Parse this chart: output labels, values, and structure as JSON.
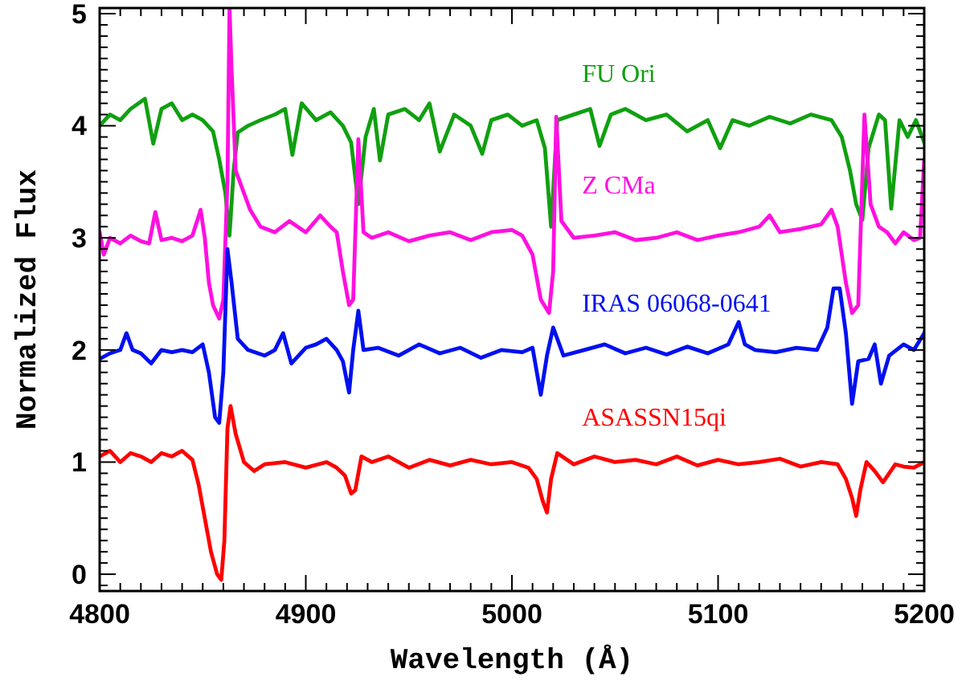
{
  "chart_data": {
    "type": "line",
    "xlabel": "Wavelength (Å)",
    "ylabel": "Normalized Flux",
    "xlim": [
      4800,
      5200
    ],
    "ylim": [
      -0.15,
      5.05
    ],
    "xticks": [
      4800,
      {
        "value": 4810,
        "label": null
      },
      {
        "value": 4820,
        "label": null
      },
      {
        "value": 4830,
        "label": null
      },
      {
        "value": 4840,
        "label": null
      },
      {
        "value": 4850,
        "label": null
      },
      {
        "value": 4860,
        "label": null
      },
      {
        "value": 4870,
        "label": null
      },
      {
        "value": 4880,
        "label": null
      },
      {
        "value": 4890,
        "label": null
      },
      4900,
      {
        "value": 4910,
        "label": null
      },
      {
        "value": 4920,
        "label": null
      },
      {
        "value": 4930,
        "label": null
      },
      {
        "value": 4940,
        "label": null
      },
      {
        "value": 4950,
        "label": null
      },
      {
        "value": 4960,
        "label": null
      },
      {
        "value": 4970,
        "label": null
      },
      {
        "value": 4980,
        "label": null
      },
      {
        "value": 4990,
        "label": null
      },
      5000,
      {
        "value": 5010,
        "label": null
      },
      {
        "value": 5020,
        "label": null
      },
      {
        "value": 5030,
        "label": null
      },
      {
        "value": 5040,
        "label": null
      },
      {
        "value": 5050,
        "label": null
      },
      {
        "value": 5060,
        "label": null
      },
      {
        "value": 5070,
        "label": null
      },
      {
        "value": 5080,
        "label": null
      },
      {
        "value": 5090,
        "label": null
      },
      5100,
      {
        "value": 5110,
        "label": null
      },
      {
        "value": 5120,
        "label": null
      },
      {
        "value": 5130,
        "label": null
      },
      {
        "value": 5140,
        "label": null
      },
      {
        "value": 5150,
        "label": null
      },
      {
        "value": 5160,
        "label": null
      },
      {
        "value": 5170,
        "label": null
      },
      {
        "value": 5180,
        "label": null
      },
      {
        "value": 5190,
        "label": null
      },
      5200
    ],
    "yticks": [
      {
        "value": -0.1,
        "label": null
      },
      0,
      {
        "value": 0.1,
        "label": null
      },
      {
        "value": 0.2,
        "label": null
      },
      {
        "value": 0.3,
        "label": null
      },
      {
        "value": 0.4,
        "label": null
      },
      {
        "value": 0.5,
        "label": null
      },
      {
        "value": 0.6,
        "label": null
      },
      {
        "value": 0.7,
        "label": null
      },
      {
        "value": 0.8,
        "label": null
      },
      {
        "value": 0.9,
        "label": null
      },
      1,
      {
        "value": 1.1,
        "label": null
      },
      {
        "value": 1.2,
        "label": null
      },
      {
        "value": 1.3,
        "label": null
      },
      {
        "value": 1.4,
        "label": null
      },
      {
        "value": 1.5,
        "label": null
      },
      {
        "value": 1.6,
        "label": null
      },
      {
        "value": 1.7,
        "label": null
      },
      {
        "value": 1.8,
        "label": null
      },
      {
        "value": 1.9,
        "label": null
      },
      2,
      {
        "value": 2.1,
        "label": null
      },
      {
        "value": 2.2,
        "label": null
      },
      {
        "value": 2.3,
        "label": null
      },
      {
        "value": 2.4,
        "label": null
      },
      {
        "value": 2.5,
        "label": null
      },
      {
        "value": 2.6,
        "label": null
      },
      {
        "value": 2.7,
        "label": null
      },
      {
        "value": 2.8,
        "label": null
      },
      {
        "value": 2.9,
        "label": null
      },
      3,
      {
        "value": 3.1,
        "label": null
      },
      {
        "value": 3.2,
        "label": null
      },
      {
        "value": 3.3,
        "label": null
      },
      {
        "value": 3.4,
        "label": null
      },
      {
        "value": 3.5,
        "label": null
      },
      {
        "value": 3.6,
        "label": null
      },
      {
        "value": 3.7,
        "label": null
      },
      {
        "value": 3.8,
        "label": null
      },
      {
        "value": 3.9,
        "label": null
      },
      4,
      {
        "value": 4.1,
        "label": null
      },
      {
        "value": 4.2,
        "label": null
      },
      {
        "value": 4.3,
        "label": null
      },
      {
        "value": 4.4,
        "label": null
      },
      {
        "value": 4.5,
        "label": null
      },
      {
        "value": 4.6,
        "label": null
      },
      {
        "value": 4.7,
        "label": null
      },
      {
        "value": 4.8,
        "label": null
      },
      {
        "value": 4.9,
        "label": null
      },
      5
    ],
    "grid": false,
    "series": [
      {
        "name": "FU Ori",
        "color": "#10a010",
        "x": [
          4800,
          4805,
          4810,
          4815,
          4822,
          4826,
          4830,
          4835,
          4840,
          4845,
          4850,
          4855,
          4858,
          4861,
          4863,
          4865,
          4867,
          4872,
          4878,
          4885,
          4890,
          4893.5,
          4898,
          4905,
          4912,
          4918,
          4922,
          4925.5,
          4929,
          4933,
          4936,
          4940,
          4948,
          4955,
          4960,
          4965,
          4972,
          4980,
          4985.6,
          4990,
          4998,
          5005,
          5012,
          5016,
          5019,
          5022,
          5030,
          5038,
          5042.5,
          5048,
          5055,
          5065,
          5075,
          5085,
          5095,
          5101,
          5107,
          5115,
          5125,
          5135,
          5145,
          5155,
          5160,
          5164,
          5167,
          5170,
          5173,
          5178,
          5181,
          5184,
          5188,
          5192,
          5196,
          5200
        ],
        "values": [
          4.0,
          4.1,
          4.05,
          4.15,
          4.24,
          3.84,
          4.15,
          4.2,
          4.05,
          4.1,
          4.05,
          3.95,
          3.7,
          3.4,
          3.02,
          3.6,
          3.94,
          4.0,
          4.05,
          4.1,
          4.15,
          3.74,
          4.2,
          4.05,
          4.12,
          4.0,
          3.85,
          3.3,
          3.9,
          4.15,
          3.69,
          4.1,
          4.15,
          4.05,
          4.2,
          3.77,
          4.1,
          4.0,
          3.75,
          4.05,
          4.1,
          4.0,
          4.05,
          3.8,
          3.1,
          4.05,
          4.1,
          4.15,
          3.82,
          4.1,
          4.15,
          4.05,
          4.1,
          3.95,
          4.05,
          3.8,
          4.05,
          4.0,
          4.08,
          4.02,
          4.1,
          4.05,
          3.9,
          3.6,
          3.3,
          3.16,
          3.8,
          4.1,
          4.05,
          3.26,
          4.05,
          3.9,
          4.05,
          3.85
        ]
      },
      {
        "name": "Z CMa",
        "color": "#ff10e0",
        "x": [
          4800,
          4802,
          4805,
          4810,
          4815,
          4820,
          4824,
          4827,
          4830,
          4835,
          4840,
          4845,
          4849,
          4851,
          4853,
          4855,
          4858,
          4860,
          4862,
          4863,
          4864,
          4866,
          4869,
          4873,
          4878,
          4885,
          4892,
          4900,
          4907,
          4912,
          4915,
          4918,
          4921,
          4923,
          4925.5,
          4928,
          4932,
          4940,
          4950,
          4960,
          4970,
          4980,
          4990,
          5000,
          5005,
          5010,
          5014,
          5018,
          5020,
          5021.5,
          5024,
          5030,
          5040,
          5050,
          5060,
          5070,
          5080,
          5090,
          5100,
          5110,
          5120,
          5125,
          5130,
          5140,
          5150,
          5155,
          5158,
          5162,
          5165,
          5168,
          5171,
          5174,
          5178,
          5182,
          5186,
          5190,
          5195,
          5198,
          5200
        ],
        "values": [
          3.05,
          2.85,
          3.0,
          2.95,
          3.02,
          2.97,
          2.95,
          3.23,
          2.98,
          3.0,
          2.97,
          3.02,
          3.25,
          3.0,
          2.6,
          2.4,
          2.28,
          2.45,
          3.5,
          5.05,
          4.5,
          3.6,
          3.45,
          3.25,
          3.1,
          3.05,
          3.15,
          3.05,
          3.2,
          3.1,
          3.05,
          2.7,
          2.4,
          2.45,
          3.88,
          3.05,
          3.0,
          3.05,
          2.97,
          3.02,
          3.05,
          2.98,
          3.05,
          3.07,
          3.02,
          2.85,
          2.45,
          2.33,
          2.7,
          4.08,
          3.15,
          3.0,
          3.02,
          3.05,
          2.98,
          3.0,
          3.05,
          2.98,
          3.02,
          3.05,
          3.1,
          3.2,
          3.05,
          3.08,
          3.12,
          3.25,
          3.1,
          2.6,
          2.33,
          2.4,
          4.1,
          3.3,
          3.1,
          3.05,
          2.95,
          3.05,
          2.98,
          3.0,
          3.7
        ]
      },
      {
        "name": "IRAS 06068-0641",
        "color": "#0010f0",
        "x": [
          4800,
          4805,
          4810,
          4813,
          4816,
          4820,
          4825,
          4830,
          4835,
          4840,
          4845,
          4850,
          4853,
          4856,
          4858,
          4860,
          4862,
          4864,
          4867,
          4872,
          4880,
          4885,
          4889,
          4893,
          4900,
          4905,
          4910,
          4915,
          4918,
          4921,
          4923,
          4925.5,
          4928,
          4935,
          4945,
          4955,
          4965,
          4975,
          4985,
          4995,
          5005,
          5010,
          5014,
          5017,
          5020,
          5025,
          5035,
          5045,
          5055,
          5065,
          5075,
          5085,
          5095,
          5105,
          5110,
          5113,
          5118,
          5128,
          5138,
          5148,
          5153,
          5156,
          5159,
          5162,
          5165,
          5168,
          5173,
          5176,
          5179,
          5183,
          5190,
          5195,
          5200
        ],
        "values": [
          1.92,
          1.97,
          2.0,
          2.15,
          2.0,
          1.97,
          1.88,
          2.0,
          1.98,
          2.0,
          1.98,
          2.05,
          1.8,
          1.4,
          1.35,
          1.8,
          2.9,
          2.6,
          2.1,
          2.0,
          1.95,
          2.0,
          2.15,
          1.88,
          2.02,
          2.05,
          2.1,
          2.0,
          1.9,
          1.62,
          2.0,
          2.35,
          2.0,
          2.02,
          1.95,
          2.05,
          1.97,
          2.02,
          1.93,
          2.0,
          1.98,
          2.02,
          1.6,
          1.95,
          2.2,
          1.95,
          2.0,
          2.05,
          1.97,
          2.02,
          1.96,
          2.03,
          1.97,
          2.05,
          2.25,
          2.05,
          2.0,
          1.98,
          2.02,
          2.0,
          2.2,
          2.55,
          2.55,
          2.15,
          1.52,
          1.9,
          1.92,
          2.05,
          1.7,
          1.95,
          2.05,
          2.0,
          2.15
        ]
      },
      {
        "name": "ASASSN15qi",
        "color": "#ff0000",
        "x": [
          4800,
          4805,
          4810,
          4815,
          4820,
          4825,
          4830,
          4835,
          4840,
          4845,
          4848,
          4851,
          4854,
          4857,
          4859,
          4860.5,
          4862,
          4863.5,
          4866,
          4870,
          4875,
          4880,
          4890,
          4900,
          4910,
          4915,
          4919,
          4922,
          4924,
          4927,
          4932,
          4940,
          4950,
          4960,
          4970,
          4980,
          4990,
          5000,
          5008,
          5012,
          5015,
          5017,
          5019,
          5022,
          5030,
          5040,
          5050,
          5060,
          5070,
          5080,
          5090,
          5100,
          5110,
          5120,
          5130,
          5140,
          5150,
          5158,
          5162,
          5165,
          5167,
          5169,
          5172,
          5176,
          5180,
          5183,
          5186,
          5190,
          5195,
          5200
        ],
        "values": [
          1.05,
          1.1,
          1.0,
          1.08,
          1.05,
          1.0,
          1.08,
          1.05,
          1.1,
          1.02,
          0.8,
          0.5,
          0.2,
          0.0,
          -0.05,
          0.3,
          1.3,
          1.5,
          1.25,
          1.0,
          0.92,
          0.98,
          1.0,
          0.95,
          1.0,
          0.95,
          0.88,
          0.72,
          0.75,
          1.05,
          1.0,
          1.05,
          0.95,
          1.02,
          0.97,
          1.02,
          0.98,
          1.0,
          0.95,
          0.85,
          0.65,
          0.55,
          0.85,
          1.08,
          0.98,
          1.05,
          1.0,
          1.02,
          0.98,
          1.05,
          0.97,
          1.02,
          0.98,
          1.0,
          1.03,
          0.96,
          1.0,
          0.98,
          0.85,
          0.68,
          0.52,
          0.75,
          1.0,
          0.92,
          0.82,
          0.9,
          0.98,
          0.96,
          0.95,
          1.0
        ]
      }
    ]
  }
}
